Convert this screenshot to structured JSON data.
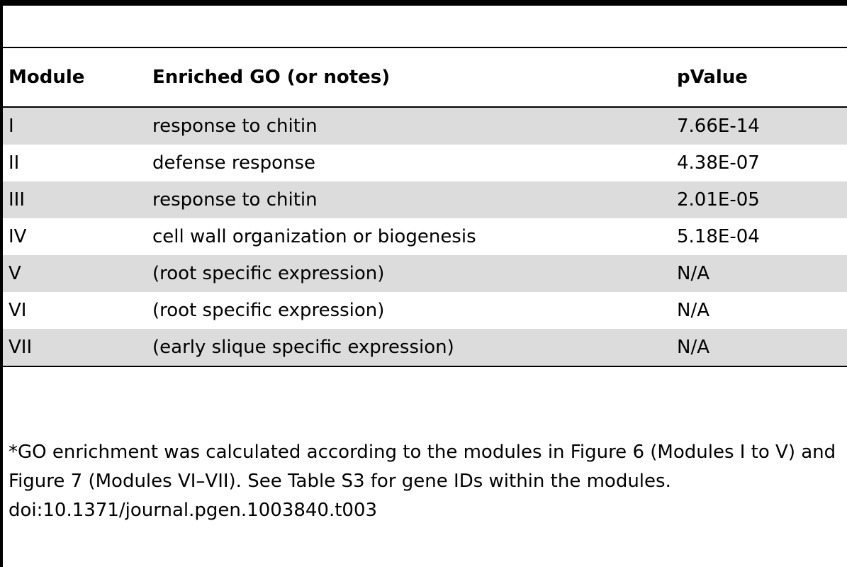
{
  "table": {
    "columns": [
      "Module",
      "Enriched GO (or notes)",
      "pValue"
    ],
    "rows": [
      [
        "I",
        "response to chitin",
        "7.66E-14"
      ],
      [
        "II",
        "defense response",
        "4.38E-07"
      ],
      [
        "III",
        "response to chitin",
        "2.01E-05"
      ],
      [
        "IV",
        "cell wall organization or biogenesis",
        "5.18E-04"
      ],
      [
        "V",
        "(root specific expression)",
        "N/A"
      ],
      [
        "VI",
        "(root specific expression)",
        "N/A"
      ],
      [
        "VII",
        "(early slique specific expression)",
        "N/A"
      ]
    ]
  },
  "footnote": "*GO enrichment was calculated according to the modules in Figure 6 (Modules I to V) and Figure 7 (Modules VI–VII). See Table S3 for gene IDs within the modules.",
  "doi": "doi:10.1371/journal.pgen.1003840.t003"
}
